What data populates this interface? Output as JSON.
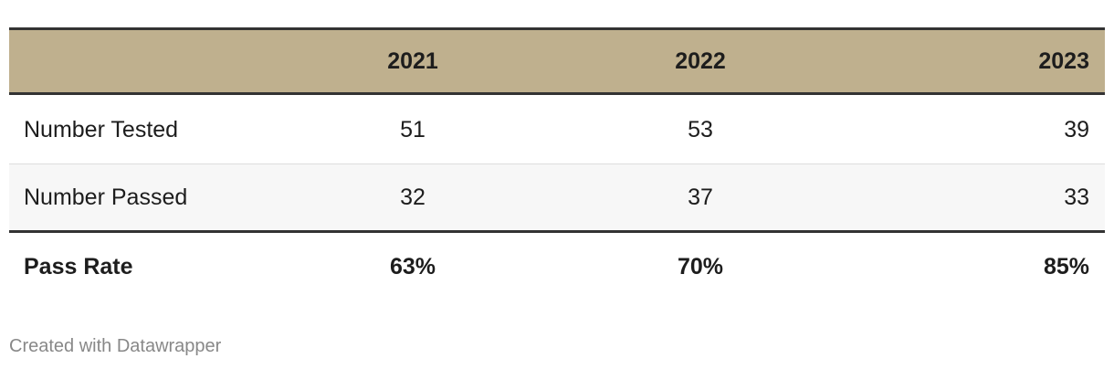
{
  "table": {
    "columns": [
      "2021",
      "2022",
      "2023"
    ],
    "rows": [
      {
        "label": "Number Tested",
        "cells": [
          "51",
          "53",
          "39"
        ]
      },
      {
        "label": "Number Passed",
        "cells": [
          "32",
          "37",
          "33"
        ]
      },
      {
        "label": "Pass Rate",
        "cells": [
          "63%",
          "70%",
          "85%"
        ]
      }
    ]
  },
  "footer": "Created with Datawrapper"
}
